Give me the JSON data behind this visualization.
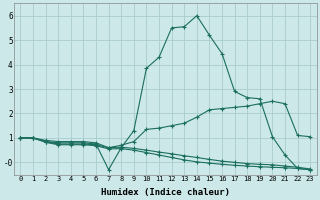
{
  "xlabel": "Humidex (Indice chaleur)",
  "background_color": "#cce8e8",
  "grid_color": "#aacccc",
  "line_color": "#1a6e5e",
  "x_values": [
    0,
    1,
    2,
    3,
    4,
    5,
    6,
    7,
    8,
    9,
    10,
    11,
    12,
    13,
    14,
    15,
    16,
    17,
    18,
    19,
    20,
    21,
    22,
    23
  ],
  "line1": [
    1.0,
    1.0,
    0.85,
    0.8,
    0.8,
    0.8,
    0.75,
    -0.3,
    0.6,
    1.3,
    3.85,
    4.3,
    5.5,
    5.55,
    6.0,
    5.2,
    4.45,
    2.9,
    2.65,
    2.6,
    1.05,
    0.3,
    -0.25,
    -0.3
  ],
  "line2": [
    1.0,
    1.0,
    0.9,
    0.85,
    0.85,
    0.85,
    0.8,
    0.6,
    0.7,
    0.85,
    1.35,
    1.4,
    1.5,
    1.6,
    1.85,
    2.15,
    2.2,
    2.25,
    2.3,
    2.4,
    2.5,
    2.4,
    1.1,
    1.05
  ],
  "line3": [
    1.0,
    1.0,
    0.85,
    0.75,
    0.75,
    0.75,
    0.72,
    0.6,
    0.62,
    0.57,
    0.5,
    0.42,
    0.35,
    0.27,
    0.2,
    0.12,
    0.05,
    0.0,
    -0.05,
    -0.08,
    -0.1,
    -0.15,
    -0.2,
    -0.27
  ],
  "line4": [
    1.0,
    1.0,
    0.82,
    0.72,
    0.72,
    0.72,
    0.68,
    0.55,
    0.56,
    0.5,
    0.4,
    0.3,
    0.2,
    0.1,
    0.02,
    -0.03,
    -0.08,
    -0.12,
    -0.15,
    -0.18,
    -0.2,
    -0.22,
    -0.25,
    -0.3
  ],
  "ylim": [
    -0.5,
    6.5
  ],
  "xlim": [
    -0.5,
    23.5
  ],
  "yticks": [
    0,
    1,
    2,
    3,
    4,
    5,
    6
  ],
  "ytick_labels": [
    "-0",
    "1",
    "2",
    "3",
    "4",
    "5",
    "6"
  ],
  "xticks": [
    0,
    1,
    2,
    3,
    4,
    5,
    6,
    7,
    8,
    9,
    10,
    11,
    12,
    13,
    14,
    15,
    16,
    17,
    18,
    19,
    20,
    21,
    22,
    23
  ],
  "markersize": 2.5,
  "linewidth": 0.8
}
